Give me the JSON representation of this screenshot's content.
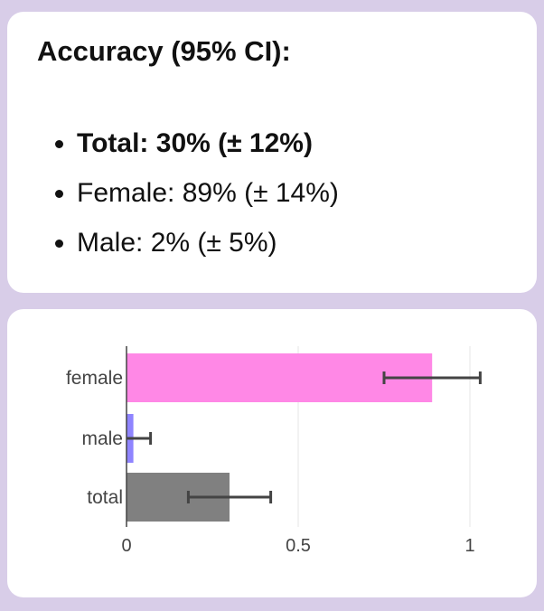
{
  "summary": {
    "title": "Accuracy (95% CI):",
    "items": [
      {
        "text": "Total: 30% (± 12%)",
        "bold": true
      },
      {
        "text": "Female: 89% (± 14%)",
        "bold": false
      },
      {
        "text": "Male: 2% (± 5%)",
        "bold": false
      }
    ]
  },
  "chart_data": {
    "type": "bar",
    "orientation": "horizontal",
    "categories": [
      "female",
      "male",
      "total"
    ],
    "values": [
      0.89,
      0.02,
      0.3
    ],
    "errors": [
      0.14,
      0.05,
      0.12
    ],
    "bar_colors": [
      "#ff88e6",
      "#8f84ff",
      "#808080"
    ],
    "xlim": [
      0,
      1.05
    ],
    "xticks": [
      0,
      0.5,
      1
    ],
    "xtick_labels": [
      "0",
      "0.5",
      "1"
    ],
    "grid": true,
    "title": "",
    "xlabel": "",
    "ylabel": ""
  }
}
